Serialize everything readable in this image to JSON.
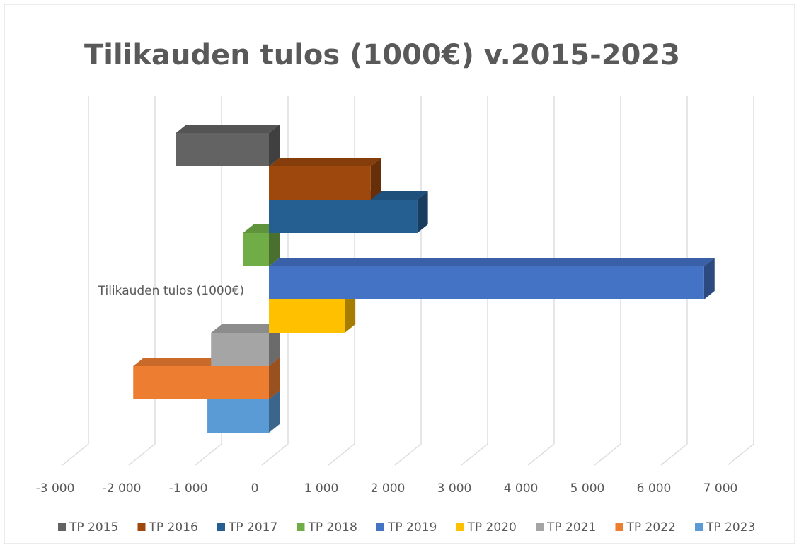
{
  "chart_data": {
    "type": "bar3d",
    "orientation": "horizontal",
    "title": "Tilikauden tulos (1000€) v.2015-2023",
    "categories": [
      "Tilikauden tulos (1000€)"
    ],
    "series": [
      {
        "name": "TP 2015",
        "color": "#636363",
        "values": [
          -1400
        ]
      },
      {
        "name": "TP 2016",
        "color": "#9e480e",
        "values": [
          1530
        ]
      },
      {
        "name": "TP 2017",
        "color": "#255e91",
        "values": [
          2230
        ]
      },
      {
        "name": "TP 2018",
        "color": "#70ad47",
        "values": [
          -390
        ]
      },
      {
        "name": "TP 2019",
        "color": "#4472c4",
        "values": [
          6540
        ]
      },
      {
        "name": "TP 2020",
        "color": "#ffc000",
        "values": [
          1140
        ]
      },
      {
        "name": "TP 2021",
        "color": "#a5a5a5",
        "values": [
          -870
        ]
      },
      {
        "name": "TP 2022",
        "color": "#ed7d31",
        "values": [
          -2040
        ]
      },
      {
        "name": "TP 2023",
        "color": "#5b9bd5",
        "values": [
          -925
        ]
      }
    ],
    "xlim": [
      -3000,
      7000
    ],
    "xticks": [
      {
        "value": -3000,
        "label": "-3 000"
      },
      {
        "value": -2000,
        "label": "-2 000"
      },
      {
        "value": -1000,
        "label": "-1 000"
      },
      0,
      {
        "value": 1000,
        "label": "1 000"
      },
      {
        "value": 2000,
        "label": "2 000"
      },
      {
        "value": 3000,
        "label": "3 000"
      },
      {
        "value": 4000,
        "label": "4 000"
      },
      {
        "value": 5000,
        "label": "5 000"
      },
      {
        "value": 6000,
        "label": "6 000"
      },
      {
        "value": 7000,
        "label": "7 000"
      }
    ],
    "grid": true,
    "legend": "bottom"
  }
}
